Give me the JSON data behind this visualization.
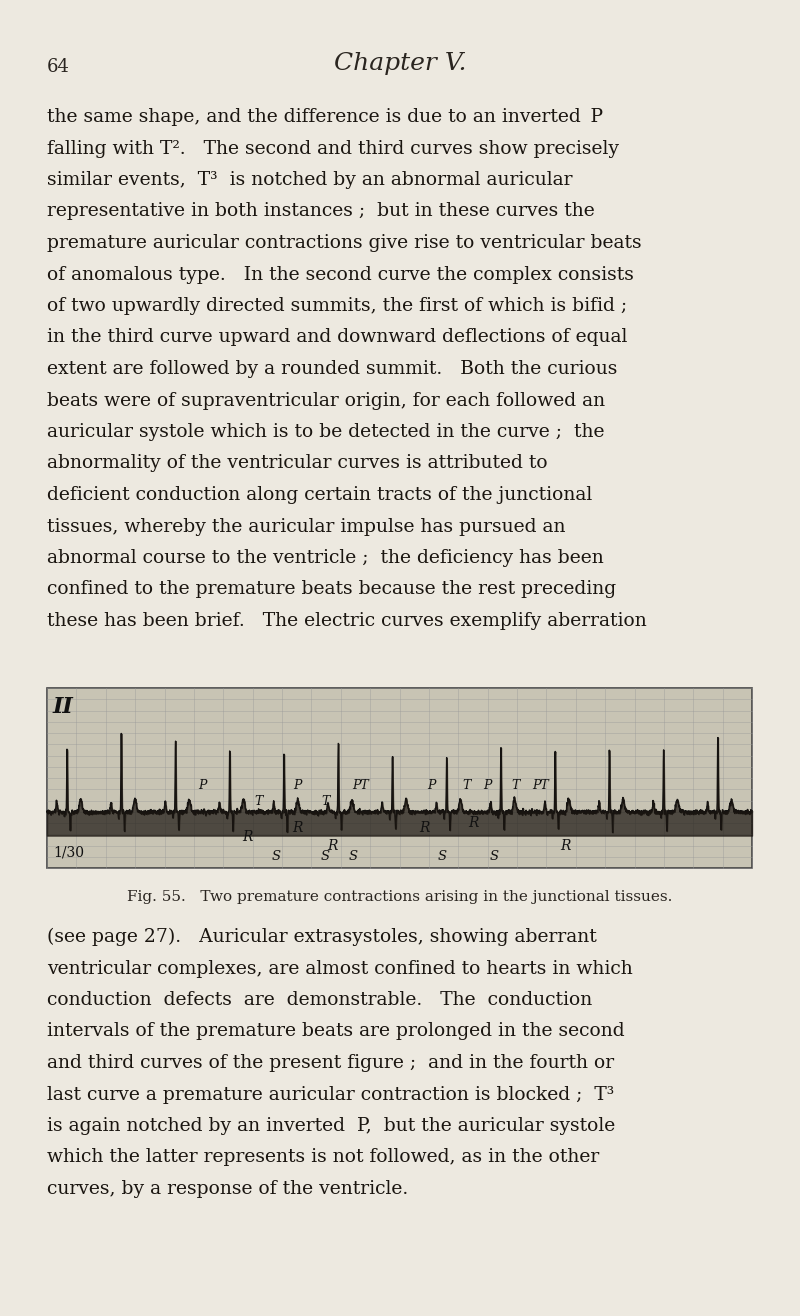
{
  "page_number": "64",
  "chapter_title": "Chapter V.",
  "background_color": "#ede9e0",
  "text_color": "#2a2520",
  "body_text_color": "#1a1510",
  "font_size_body": 13.5,
  "font_size_chapter": 18,
  "font_size_page_num": 13,
  "lines1": [
    "the same shape, and the difference is due to an inverted  P",
    "falling with T².   The second and third curves show precisely",
    "similar events,  T³  is notched by an abnormal auricular",
    "representative in both instances ;  but in these curves the",
    "premature auricular contractions give rise to ventricular beats",
    "of anomalous type.   In the second curve the complex consists",
    "of two upwardly directed summits, the first of which is bifid ;",
    "in the third curve upward and downward deflections of equal",
    "extent are followed by a rounded summit.   Both the curious",
    "beats were of supraventricular origin, for each followed an",
    "auricular systole which is to be detected in the curve ;  the",
    "abnormality of the ventricular curves is attributed to",
    "deficient conduction along certain tracts of the junctional",
    "tissues, whereby the auricular impulse has pursued an",
    "abnormal course to the ventricle ;  the deficiency has been",
    "confined to the premature beats because the rest preceding",
    "these has been brief.   The electric curves exemplify aberration"
  ],
  "figure_caption": "Fig. 55.   Two premature contractions arising in the junctional tissues.",
  "lines2": [
    "(see page 27).   Auricular extrasystoles, showing aberrant",
    "ventricular complexes, are almost confined to hearts in which",
    "conduction  defects  are  demonstrable.   The  conduction",
    "intervals of the premature beats are prolonged in the second",
    "and third curves of the present figure ;  and in the fourth or",
    "last curve a premature auricular contraction is blocked ;  T³",
    "is again notched by an inverted  P,  but the auricular systole",
    "which the latter represents is not followed, as in the other",
    "curves, by a response of the ventricle."
  ],
  "ecg": {
    "bg_color": "#c8c4b4",
    "border_color": "#444444",
    "grid_color": "#999999",
    "waveform_color": "#111111",
    "label_II": "II",
    "label_130": "1/30",
    "r_labels": [
      {
        "xf": 0.285,
        "yf": 0.83
      },
      {
        "xf": 0.355,
        "yf": 0.78
      },
      {
        "xf": 0.405,
        "yf": 0.88
      },
      {
        "xf": 0.535,
        "yf": 0.78
      },
      {
        "xf": 0.605,
        "yf": 0.75
      },
      {
        "xf": 0.735,
        "yf": 0.88
      }
    ],
    "annotations": [
      {
        "xf": 0.22,
        "yf": 0.54,
        "label": "P"
      },
      {
        "xf": 0.3,
        "yf": 0.63,
        "label": "T"
      },
      {
        "xf": 0.355,
        "yf": 0.54,
        "label": "P"
      },
      {
        "xf": 0.395,
        "yf": 0.63,
        "label": "T"
      },
      {
        "xf": 0.445,
        "yf": 0.54,
        "label": "PT"
      },
      {
        "xf": 0.545,
        "yf": 0.54,
        "label": "P"
      },
      {
        "xf": 0.595,
        "yf": 0.54,
        "label": "T"
      },
      {
        "xf": 0.625,
        "yf": 0.54,
        "label": "P"
      },
      {
        "xf": 0.665,
        "yf": 0.54,
        "label": "T"
      },
      {
        "xf": 0.7,
        "yf": 0.54,
        "label": "PT"
      }
    ],
    "s_labels": [
      {
        "xf": 0.325
      },
      {
        "xf": 0.395
      },
      {
        "xf": 0.435
      },
      {
        "xf": 0.56
      },
      {
        "xf": 0.635
      }
    ]
  }
}
